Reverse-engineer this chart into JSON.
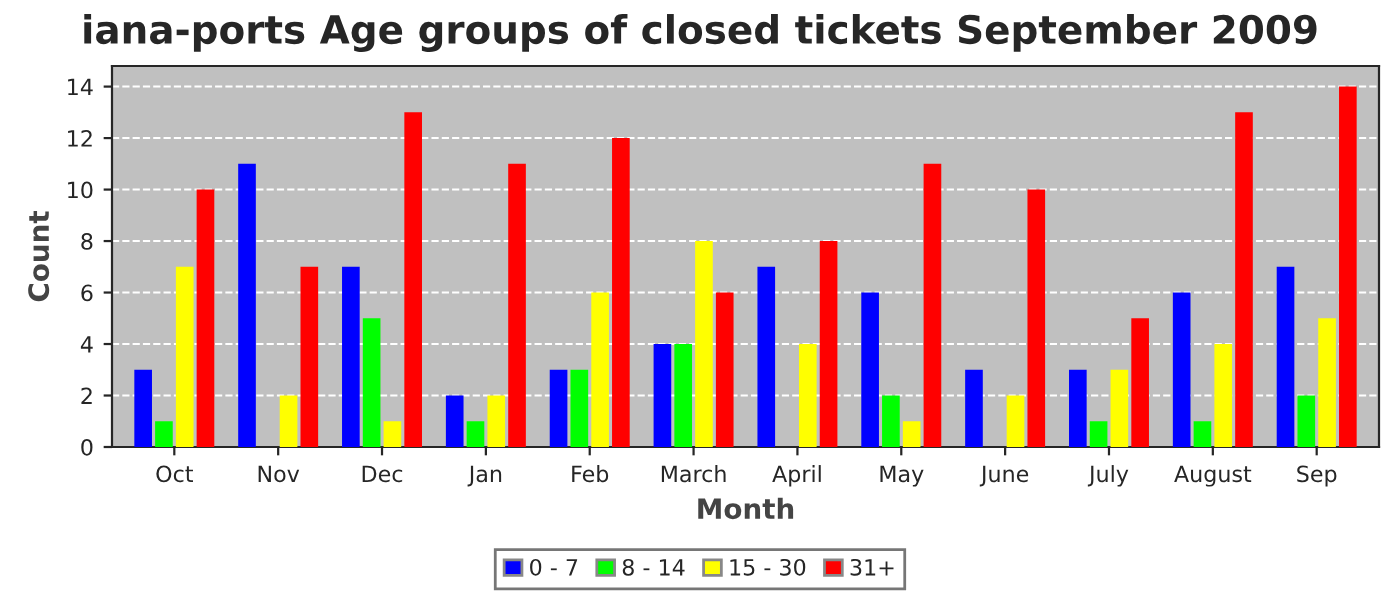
{
  "chart_data": {
    "type": "bar",
    "title": "iana-ports Age groups of closed tickets September 2009",
    "xlabel": "Month",
    "ylabel": "Count",
    "categories": [
      "Oct",
      "Nov",
      "Dec",
      "Jan",
      "Feb",
      "March",
      "April",
      "May",
      "June",
      "July",
      "August",
      "Sep"
    ],
    "series": [
      {
        "name": "0 - 7",
        "color": "#0000ff",
        "values": [
          3,
          11,
          7,
          2,
          3,
          4,
          7,
          6,
          3,
          3,
          6,
          7
        ]
      },
      {
        "name": "8 - 14",
        "color": "#00ff00",
        "values": [
          1,
          0,
          5,
          1,
          3,
          4,
          0,
          2,
          0,
          1,
          1,
          2
        ]
      },
      {
        "name": "15 - 30",
        "color": "#ffff00",
        "values": [
          7,
          2,
          1,
          2,
          6,
          8,
          4,
          1,
          2,
          3,
          4,
          5
        ]
      },
      {
        "name": "31+",
        "color": "#ff0000",
        "values": [
          10,
          7,
          13,
          11,
          12,
          6,
          8,
          11,
          10,
          5,
          13,
          14
        ]
      }
    ],
    "ylim": [
      0,
      14.8
    ],
    "yticks": [
      0,
      2,
      4,
      6,
      8,
      10,
      12,
      14
    ],
    "grid": "y",
    "legend": "bottom"
  }
}
